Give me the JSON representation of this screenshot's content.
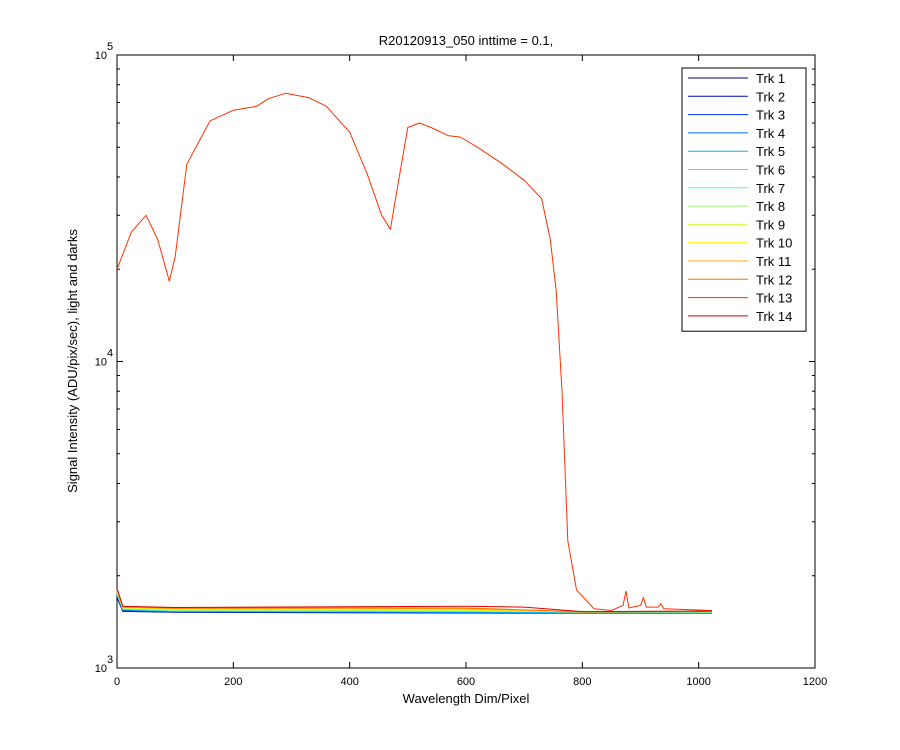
{
  "chart_data": {
    "type": "line",
    "title": "R20120913_050 inttime = 0.1,",
    "xlabel": "Wavelength Dim/Pixel",
    "ylabel": "Signal Intensity (ADU/pix/sec), light and darks",
    "xlim": [
      0,
      1200
    ],
    "ylim": [
      1000,
      100000
    ],
    "yscale": "log",
    "xticks": [
      0,
      200,
      400,
      600,
      800,
      1000,
      1200
    ],
    "xtick_labels": [
      "0",
      "200",
      "400",
      "600",
      "800",
      "1000",
      "1200"
    ],
    "ytick_labels": [
      {
        "value": 1000,
        "base": "10",
        "exp": "3"
      },
      {
        "value": 10000,
        "base": "10",
        "exp": "4"
      },
      {
        "value": 100000,
        "base": "10",
        "exp": "5"
      }
    ],
    "grid": false,
    "legend_position": "top-right",
    "series": [
      {
        "name": "Trk 1",
        "color": "#00008f",
        "x": [
          0,
          10,
          100,
          400,
          700,
          1023
        ],
        "y": [
          1700,
          1530,
          1520,
          1515,
          1510,
          1510
        ]
      },
      {
        "name": "Trk 2",
        "color": "#0000cf",
        "x": [
          0,
          10,
          100,
          400,
          700,
          1023
        ],
        "y": [
          1710,
          1535,
          1522,
          1517,
          1512,
          1512
        ]
      },
      {
        "name": "Trk 3",
        "color": "#0030ff",
        "x": [
          0,
          10,
          100,
          400,
          700,
          1023
        ],
        "y": [
          1720,
          1540,
          1525,
          1520,
          1515,
          1514
        ]
      },
      {
        "name": "Trk 4",
        "color": "#0070ff",
        "x": [
          0,
          10,
          100,
          400,
          700,
          1023
        ],
        "y": [
          1730,
          1545,
          1528,
          1523,
          1518,
          1516
        ]
      },
      {
        "name": "Trk 5",
        "color": "#00b0ff",
        "x": [
          0,
          10,
          100,
          400,
          700,
          1023
        ],
        "y": [
          1740,
          1550,
          1532,
          1527,
          1521,
          1518
        ]
      },
      {
        "name": "Trk 6",
        "color": "#10f0ef",
        "x": [
          0,
          10,
          100,
          400,
          700,
          1023
        ],
        "y": [
          1750,
          1555,
          1536,
          1531,
          1525,
          1520
        ]
      },
      {
        "name": "Trk 7",
        "color": "#50ffaf",
        "x": [
          0,
          10,
          100,
          400,
          700,
          1023
        ],
        "y": [
          1760,
          1560,
          1540,
          1536,
          1529,
          1522
        ]
      },
      {
        "name": "Trk 8",
        "color": "#90ff6f",
        "x": [
          0,
          10,
          100,
          400,
          700,
          1023
        ],
        "y": [
          1770,
          1565,
          1545,
          1541,
          1533,
          1524
        ]
      },
      {
        "name": "Trk 9",
        "color": "#cfff30",
        "x": [
          0,
          10,
          100,
          400,
          600,
          800,
          1023
        ],
        "y": [
          1780,
          1570,
          1550,
          1548,
          1545,
          1520,
          1526
        ]
      },
      {
        "name": "Trk 10",
        "color": "#ffef00",
        "x": [
          0,
          10,
          100,
          400,
          600,
          800,
          1023
        ],
        "y": [
          1790,
          1575,
          1556,
          1555,
          1552,
          1522,
          1528
        ]
      },
      {
        "name": "Trk 11",
        "color": "#ffaf00",
        "x": [
          0,
          10,
          100,
          400,
          600,
          800,
          1023
        ],
        "y": [
          1800,
          1580,
          1562,
          1563,
          1560,
          1524,
          1530
        ]
      },
      {
        "name": "Trk 12",
        "color": "#ff7000",
        "x": [
          0,
          10,
          100,
          400,
          600,
          800,
          1023
        ],
        "y": [
          1810,
          1585,
          1568,
          1572,
          1570,
          1526,
          1532
        ]
      },
      {
        "name": "Trk 13",
        "color": "#ff3000",
        "x": [
          0,
          25,
          50,
          70,
          90,
          100,
          120,
          160,
          200,
          220,
          240,
          260,
          290,
          330,
          360,
          400,
          430,
          455,
          470,
          480,
          500,
          520,
          540,
          570,
          590,
          620,
          660,
          700,
          730,
          745,
          755,
          765,
          775,
          790,
          820,
          850,
          870,
          875,
          880,
          900,
          905,
          910,
          930,
          935,
          940,
          1023
        ],
        "y": [
          20000,
          26500,
          30000,
          25000,
          18300,
          22000,
          44000,
          61000,
          66000,
          67000,
          68000,
          72000,
          75000,
          72500,
          68000,
          56000,
          41000,
          30000,
          27000,
          35000,
          58000,
          60000,
          58000,
          54500,
          54000,
          50000,
          44500,
          39000,
          34000,
          25000,
          17000,
          8000,
          2600,
          1800,
          1560,
          1540,
          1600,
          1780,
          1570,
          1600,
          1700,
          1580,
          1580,
          1620,
          1560,
          1540
        ]
      },
      {
        "name": "Trk 14",
        "color": "#e00000",
        "x": [
          0,
          10,
          100,
          400,
          600,
          700,
          800,
          1023
        ],
        "y": [
          1820,
          1590,
          1575,
          1585,
          1590,
          1580,
          1528,
          1535
        ]
      }
    ]
  }
}
